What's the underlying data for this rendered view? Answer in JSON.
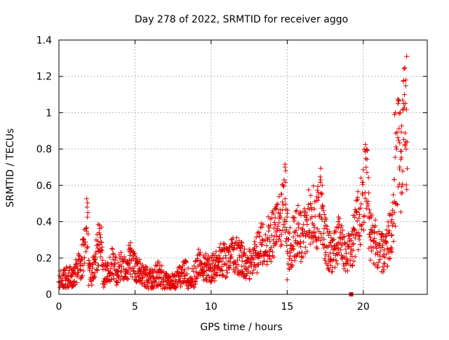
{
  "chart_data": {
    "type": "scatter",
    "title": "Day 278 of 2022, SRMTID for receiver aggo",
    "xlabel": "GPS time / hours",
    "ylabel": "SRMTID / TECUs",
    "xlim": [
      0,
      24.2
    ],
    "ylim": [
      0,
      1.4
    ],
    "xticks": [
      0,
      5,
      10,
      15,
      20
    ],
    "xtick_labels": [
      "0",
      "5",
      "10",
      "15",
      "20"
    ],
    "yticks": [
      0,
      0.2,
      0.4,
      0.6,
      0.8,
      1.0,
      1.2,
      1.4
    ],
    "ytick_labels": [
      "0",
      "0.2",
      "0.4",
      "0.6",
      "0.8",
      "1",
      "1.2",
      "1.4"
    ],
    "grid": true,
    "marker": "plus",
    "color": "#e00000",
    "anchors": [
      [
        0.0,
        0.08
      ],
      [
        0.3,
        0.08
      ],
      [
        0.6,
        0.1
      ],
      [
        0.9,
        0.08
      ],
      [
        1.1,
        0.12
      ],
      [
        1.3,
        0.16
      ],
      [
        1.5,
        0.18
      ],
      [
        1.7,
        0.28
      ],
      [
        1.85,
        0.42
      ],
      [
        1.95,
        0.12
      ],
      [
        2.2,
        0.12
      ],
      [
        2.4,
        0.18
      ],
      [
        2.6,
        0.28
      ],
      [
        2.75,
        0.32
      ],
      [
        2.9,
        0.1
      ],
      [
        3.2,
        0.12
      ],
      [
        3.5,
        0.18
      ],
      [
        3.8,
        0.12
      ],
      [
        4.1,
        0.16
      ],
      [
        4.4,
        0.14
      ],
      [
        4.7,
        0.2
      ],
      [
        5.0,
        0.14
      ],
      [
        5.3,
        0.12
      ],
      [
        5.6,
        0.1
      ],
      [
        6.0,
        0.08
      ],
      [
        6.3,
        0.1
      ],
      [
        6.6,
        0.12
      ],
      [
        6.9,
        0.08
      ],
      [
        7.2,
        0.06
      ],
      [
        7.6,
        0.07
      ],
      [
        8.0,
        0.1
      ],
      [
        8.3,
        0.12
      ],
      [
        8.6,
        0.07
      ],
      [
        8.9,
        0.1
      ],
      [
        9.2,
        0.17
      ],
      [
        9.5,
        0.16
      ],
      [
        9.9,
        0.14
      ],
      [
        10.3,
        0.16
      ],
      [
        10.7,
        0.2
      ],
      [
        11.1,
        0.18
      ],
      [
        11.5,
        0.22
      ],
      [
        11.9,
        0.2
      ],
      [
        12.3,
        0.16
      ],
      [
        12.7,
        0.18
      ],
      [
        13.0,
        0.22
      ],
      [
        13.3,
        0.28
      ],
      [
        13.7,
        0.3
      ],
      [
        14.0,
        0.32
      ],
      [
        14.3,
        0.35
      ],
      [
        14.6,
        0.4
      ],
      [
        14.85,
        0.55
      ],
      [
        15.1,
        0.25
      ],
      [
        15.4,
        0.3
      ],
      [
        15.7,
        0.35
      ],
      [
        16.0,
        0.3
      ],
      [
        16.3,
        0.38
      ],
      [
        16.6,
        0.45
      ],
      [
        16.9,
        0.38
      ],
      [
        17.2,
        0.5
      ],
      [
        17.4,
        0.35
      ],
      [
        17.7,
        0.25
      ],
      [
        18.0,
        0.22
      ],
      [
        18.3,
        0.3
      ],
      [
        18.6,
        0.28
      ],
      [
        18.9,
        0.2
      ],
      [
        19.2,
        0.26
      ],
      [
        19.5,
        0.35
      ],
      [
        19.8,
        0.45
      ],
      [
        20.0,
        0.55
      ],
      [
        20.2,
        0.7
      ],
      [
        20.4,
        0.35
      ],
      [
        20.7,
        0.3
      ],
      [
        21.0,
        0.25
      ],
      [
        21.3,
        0.22
      ],
      [
        21.6,
        0.28
      ],
      [
        21.9,
        0.35
      ],
      [
        22.1,
        0.6
      ],
      [
        22.3,
        0.85
      ],
      [
        22.5,
        0.7
      ],
      [
        22.7,
        0.95
      ],
      [
        22.9,
        0.7
      ]
    ],
    "outliers": [
      [
        22.85,
        1.31
      ],
      [
        22.8,
        1.18
      ],
      [
        22.7,
        1.1
      ],
      [
        22.65,
        1.05
      ],
      [
        22.6,
        1.02
      ],
      [
        22.1,
        1.0
      ],
      [
        22.05,
        0.99
      ],
      [
        20.2,
        0.8
      ],
      [
        20.25,
        0.79
      ],
      [
        14.85,
        0.7
      ],
      [
        14.9,
        0.68
      ],
      [
        17.2,
        0.63
      ],
      [
        17.3,
        0.6
      ],
      [
        1.85,
        0.48
      ],
      [
        1.9,
        0.45
      ],
      [
        2.8,
        0.37
      ],
      [
        15.0,
        0.08
      ]
    ],
    "special_marker": {
      "x": 19.2,
      "y": 0.0
    }
  }
}
